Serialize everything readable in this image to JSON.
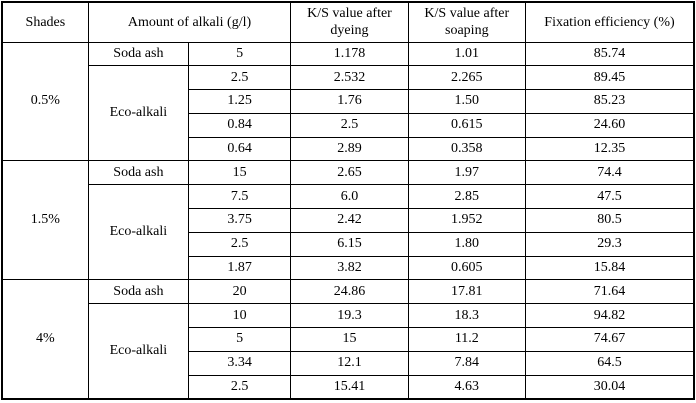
{
  "table": {
    "headers": {
      "shades": "Shades",
      "alkali": "Amount of alkali (g/l)",
      "ks_dyeing": "K/S value after dyeing",
      "ks_soaping": "K/S value after soaping",
      "fixation": "Fixation efficiency (%)"
    },
    "groups": [
      {
        "shade": "0.5%",
        "rows": [
          {
            "type": "Soda ash",
            "amount": "5",
            "ks_dyeing": "1.178",
            "ks_soaping": "1.01",
            "fixation": "85.74"
          },
          {
            "type": "Eco-alkali",
            "amount": "2.5",
            "ks_dyeing": "2.532",
            "ks_soaping": "2.265",
            "fixation": "89.45"
          },
          {
            "amount": "1.25",
            "ks_dyeing": "1.76",
            "ks_soaping": "1.50",
            "fixation": "85.23"
          },
          {
            "amount": "0.84",
            "ks_dyeing": "2.5",
            "ks_soaping": "0.615",
            "fixation": "24.60"
          },
          {
            "amount": "0.64",
            "ks_dyeing": "2.89",
            "ks_soaping": "0.358",
            "fixation": "12.35"
          }
        ]
      },
      {
        "shade": "1.5%",
        "rows": [
          {
            "type": "Soda ash",
            "amount": "15",
            "ks_dyeing": "2.65",
            "ks_soaping": "1.97",
            "fixation": "74.4"
          },
          {
            "type": "Eco-alkali",
            "amount": "7.5",
            "ks_dyeing": "6.0",
            "ks_soaping": "2.85",
            "fixation": "47.5"
          },
          {
            "amount": "3.75",
            "ks_dyeing": "2.42",
            "ks_soaping": "1.952",
            "fixation": "80.5"
          },
          {
            "amount": "2.5",
            "ks_dyeing": "6.15",
            "ks_soaping": "1.80",
            "fixation": "29.3"
          },
          {
            "amount": "1.87",
            "ks_dyeing": "3.82",
            "ks_soaping": "0.605",
            "fixation": "15.84"
          }
        ]
      },
      {
        "shade": "4%",
        "rows": [
          {
            "type": "Soda ash",
            "amount": "20",
            "ks_dyeing": "24.86",
            "ks_soaping": "17.81",
            "fixation": "71.64"
          },
          {
            "type": "Eco-alkali",
            "amount": "10",
            "ks_dyeing": "19.3",
            "ks_soaping": "18.3",
            "fixation": "94.82"
          },
          {
            "amount": "5",
            "ks_dyeing": "15",
            "ks_soaping": "11.2",
            "fixation": "74.67"
          },
          {
            "amount": "3.34",
            "ks_dyeing": "12.1",
            "ks_soaping": "7.84",
            "fixation": "64.5"
          },
          {
            "amount": "2.5",
            "ks_dyeing": "15.41",
            "ks_soaping": "4.63",
            "fixation": "30.04"
          }
        ]
      }
    ]
  }
}
